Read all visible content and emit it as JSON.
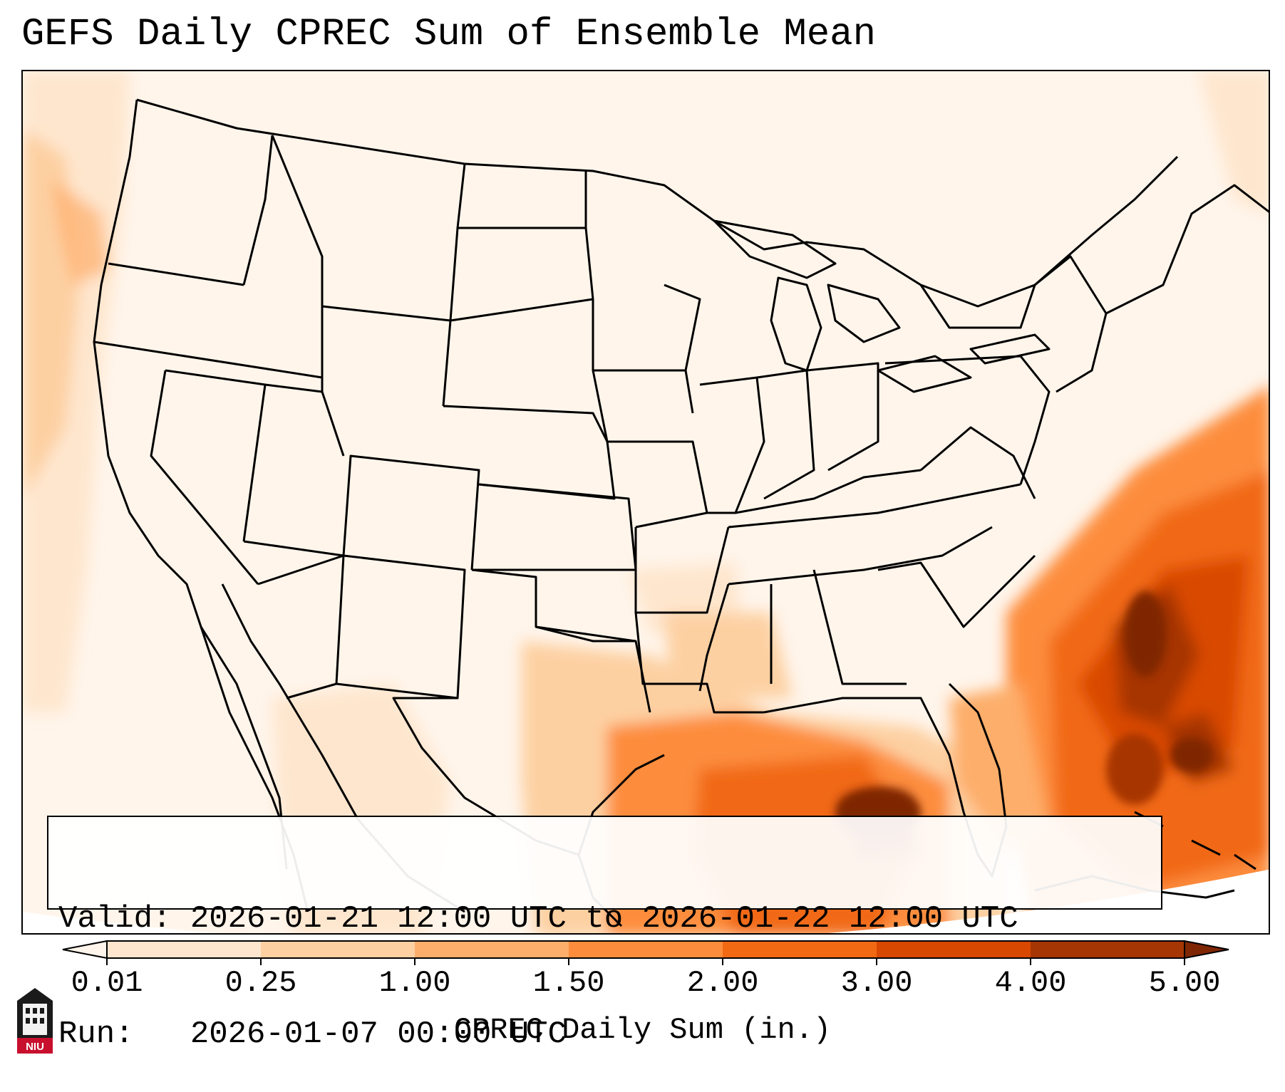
{
  "title": "GEFS Daily CPREC Sum of Ensemble Mean",
  "info": {
    "valid_line": "Valid: 2026-01-21 12:00 UTC to 2026-01-22 12:00 UTC",
    "run_line": "Run:   2026-01-07 00:00 UTC"
  },
  "colorbar": {
    "label": "CPREC Daily Sum (in.)",
    "ticks": [
      "0.01",
      "0.25",
      "1.00",
      "1.50",
      "2.00",
      "3.00",
      "4.00",
      "5.00"
    ],
    "colors": [
      "#fff5eb",
      "#fee6ce",
      "#fdd0a2",
      "#fdae6b",
      "#fd8d3c",
      "#f16913",
      "#d94801",
      "#a63603",
      "#7f2704"
    ],
    "extend": "both"
  },
  "map": {
    "region": "CONUS",
    "variable": "CPREC",
    "units": "in.",
    "max_region": "Gulf of Mexico / western Atlantic off Southeast coast"
  },
  "logo": {
    "text": "NIU",
    "icon": "niu-logo-icon"
  }
}
